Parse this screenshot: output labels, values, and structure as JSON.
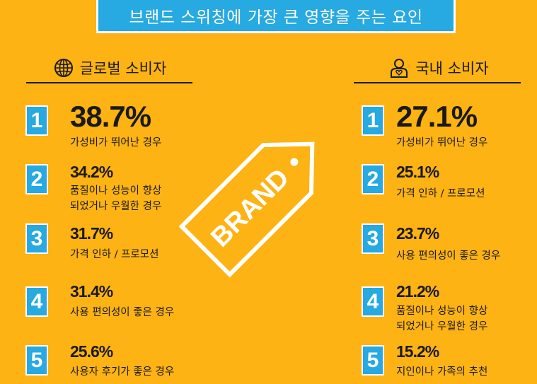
{
  "title": "브랜드 스위칭에 가장 큰 영향을 주는 요인",
  "tag_text": "BRAND",
  "colors": {
    "background": "#FDB313",
    "accent_blue": "#27A9E1",
    "text": "#1a1a1a",
    "white": "#ffffff"
  },
  "global": {
    "header": "글로벌 소비자",
    "icon": "globe-icon",
    "items": [
      {
        "rank": "1",
        "percent": "38.7%",
        "label": "가성비가 뛰어난 경우"
      },
      {
        "rank": "2",
        "percent": "34.2%",
        "label": "품질이나 성능이 향상",
        "label2": "되었거나 우월한 경우"
      },
      {
        "rank": "3",
        "percent": "31.7%",
        "label": "가격 인하 / 프로모션"
      },
      {
        "rank": "4",
        "percent": "31.4%",
        "label": "사용 편의성이 좋은 경우"
      },
      {
        "rank": "5",
        "percent": "25.6%",
        "label": "사용자 후기가 좋은 경우"
      }
    ]
  },
  "domestic": {
    "header": "국내 소비자",
    "icon": "person-heart-icon",
    "items": [
      {
        "rank": "1",
        "percent": "27.1%",
        "label": "가성비가 뛰어난 경우"
      },
      {
        "rank": "2",
        "percent": "25.1%",
        "label": "가격 인하 / 프로모션"
      },
      {
        "rank": "3",
        "percent": "23.7%",
        "label": "사용 편의성이 좋은 경우"
      },
      {
        "rank": "4",
        "percent": "21.2%",
        "label": "품질이나 성능이 향상",
        "label2": "되었거나 우월한 경우"
      },
      {
        "rank": "5",
        "percent": "15.2%",
        "label": "지인이나 가족의 추천"
      }
    ]
  }
}
